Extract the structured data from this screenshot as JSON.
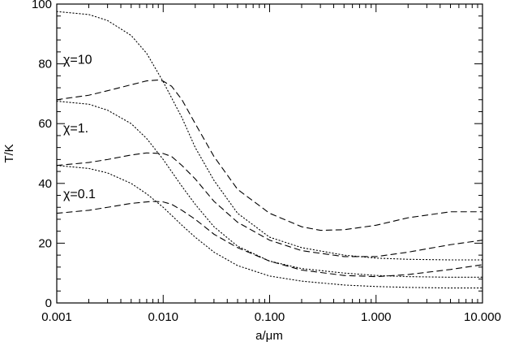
{
  "chart_data": {
    "type": "line",
    "xlabel": "a/μm",
    "ylabel": "T/K",
    "xscale": "log",
    "xlim": [
      0.001,
      10.0
    ],
    "ylim": [
      0,
      100
    ],
    "x_ticks": [
      "0.001",
      "0.010",
      "0.100",
      "1.000",
      "10.000"
    ],
    "y_ticks": [
      "0",
      "20",
      "40",
      "60",
      "80",
      "100"
    ],
    "grid": false,
    "annotations": [
      {
        "text": "χ=10",
        "x": 0.00115,
        "y": 80
      },
      {
        "text": "χ=1.",
        "x": 0.00115,
        "y": 57
      },
      {
        "text": "χ=0.1",
        "x": 0.00115,
        "y": 35
      }
    ],
    "series": [
      {
        "chi": "10",
        "style": "dotted",
        "points": [
          [
            0.001,
            97.5
          ],
          [
            0.002,
            96.5
          ],
          [
            0.003,
            94.5
          ],
          [
            0.005,
            89.5
          ],
          [
            0.007,
            83.5
          ],
          [
            0.01,
            74
          ],
          [
            0.015,
            62
          ],
          [
            0.02,
            52
          ],
          [
            0.03,
            41
          ],
          [
            0.05,
            30
          ],
          [
            0.1,
            22
          ],
          [
            0.2,
            18.5
          ],
          [
            0.5,
            16
          ],
          [
            1,
            15
          ],
          [
            2,
            14.6
          ],
          [
            5,
            14.4
          ],
          [
            10,
            14.4
          ]
        ]
      },
      {
        "chi": "10",
        "style": "dashed",
        "points": [
          [
            0.001,
            68
          ],
          [
            0.002,
            69.5
          ],
          [
            0.003,
            71
          ],
          [
            0.005,
            73
          ],
          [
            0.007,
            74.3
          ],
          [
            0.009,
            74.6
          ],
          [
            0.01,
            74.2
          ],
          [
            0.012,
            72.5
          ],
          [
            0.015,
            68
          ],
          [
            0.02,
            60
          ],
          [
            0.03,
            49
          ],
          [
            0.05,
            38
          ],
          [
            0.1,
            30
          ],
          [
            0.2,
            25.5
          ],
          [
            0.3,
            24.3
          ],
          [
            0.5,
            24.5
          ],
          [
            1,
            26
          ],
          [
            2,
            28.5
          ],
          [
            5,
            30.5
          ],
          [
            10,
            30.5
          ]
        ]
      },
      {
        "chi": "1",
        "style": "dotted",
        "points": [
          [
            0.001,
            67.5
          ],
          [
            0.002,
            66.5
          ],
          [
            0.003,
            64.5
          ],
          [
            0.005,
            60
          ],
          [
            0.007,
            55
          ],
          [
            0.01,
            48
          ],
          [
            0.015,
            39
          ],
          [
            0.02,
            33
          ],
          [
            0.03,
            25.5
          ],
          [
            0.05,
            19
          ],
          [
            0.1,
            14
          ],
          [
            0.2,
            11.5
          ],
          [
            0.5,
            10
          ],
          [
            1,
            9.2
          ],
          [
            2,
            8.8
          ],
          [
            5,
            8.6
          ],
          [
            10,
            8.6
          ]
        ]
      },
      {
        "chi": "1",
        "style": "dashed",
        "points": [
          [
            0.001,
            46
          ],
          [
            0.002,
            47
          ],
          [
            0.003,
            48
          ],
          [
            0.005,
            49.5
          ],
          [
            0.007,
            50.2
          ],
          [
            0.01,
            50
          ],
          [
            0.012,
            49
          ],
          [
            0.015,
            46
          ],
          [
            0.02,
            41.5
          ],
          [
            0.03,
            34
          ],
          [
            0.05,
            27
          ],
          [
            0.1,
            21
          ],
          [
            0.2,
            17.5
          ],
          [
            0.5,
            15.5
          ],
          [
            1,
            15.5
          ],
          [
            2,
            17
          ],
          [
            5,
            19.5
          ],
          [
            10,
            21
          ]
        ]
      },
      {
        "chi": "0.1",
        "style": "dotted",
        "points": [
          [
            0.001,
            46
          ],
          [
            0.002,
            45
          ],
          [
            0.003,
            43.5
          ],
          [
            0.005,
            40
          ],
          [
            0.007,
            36.5
          ],
          [
            0.01,
            32
          ],
          [
            0.015,
            26
          ],
          [
            0.02,
            22
          ],
          [
            0.03,
            17
          ],
          [
            0.05,
            12.5
          ],
          [
            0.1,
            9
          ],
          [
            0.2,
            7.3
          ],
          [
            0.5,
            6
          ],
          [
            1,
            5.5
          ],
          [
            2,
            5.2
          ],
          [
            5,
            5
          ],
          [
            10,
            5
          ]
        ]
      },
      {
        "chi": "0.1",
        "style": "dashed",
        "points": [
          [
            0.001,
            30
          ],
          [
            0.002,
            31
          ],
          [
            0.003,
            32
          ],
          [
            0.005,
            33.3
          ],
          [
            0.008,
            34
          ],
          [
            0.01,
            33.8
          ],
          [
            0.012,
            33
          ],
          [
            0.015,
            31
          ],
          [
            0.02,
            28
          ],
          [
            0.03,
            23
          ],
          [
            0.05,
            18.5
          ],
          [
            0.1,
            14
          ],
          [
            0.2,
            11
          ],
          [
            0.5,
            9.2
          ],
          [
            1,
            8.8
          ],
          [
            2,
            9.5
          ],
          [
            5,
            11.2
          ],
          [
            10,
            12.8
          ]
        ]
      }
    ]
  }
}
